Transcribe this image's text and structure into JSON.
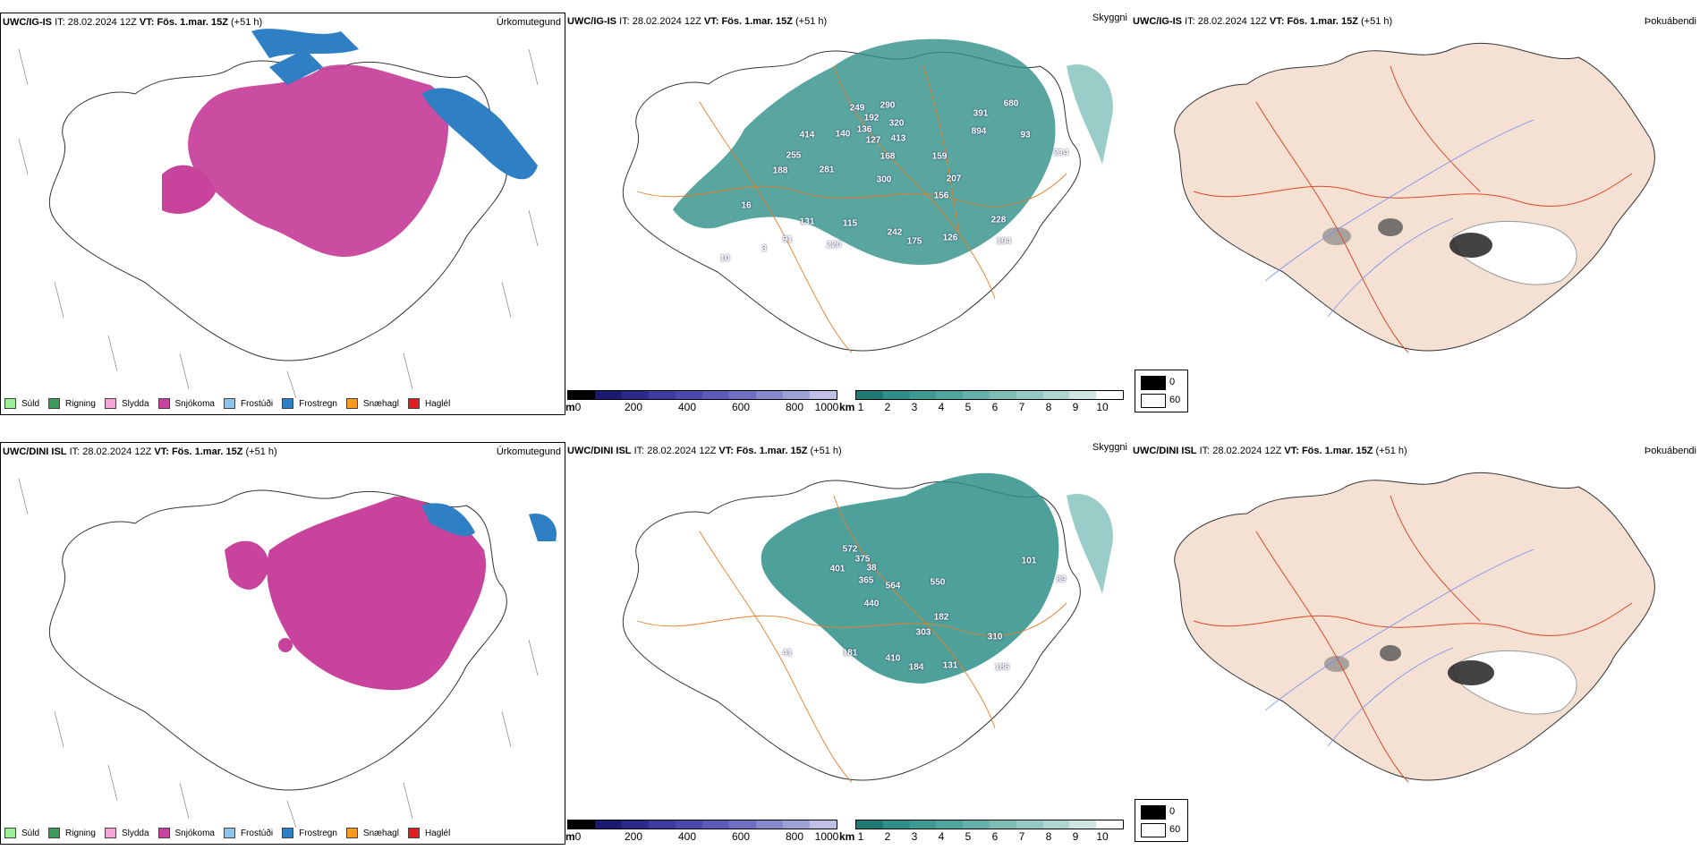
{
  "rows": [
    {
      "model": "UWC/IG-IS",
      "it_label": "IT:",
      "it": "28.02.2024 12Z",
      "vt_label": "VT:",
      "vt": "Fös. 1.mar. 15Z",
      "lead": "(+51 h)",
      "panels": {
        "precip": "Úrkomutegund",
        "visibility": "Skyggni",
        "fog": "Þokuábendi"
      },
      "visibility_values": [
        "249",
        "192",
        "290",
        "320",
        "391",
        "680",
        "414",
        "140",
        "136",
        "127",
        "413",
        "894",
        "255",
        "168",
        "159",
        "93",
        "214",
        "188",
        "281",
        "300",
        "207",
        "156",
        "16",
        "131",
        "115",
        "228",
        "91",
        "242",
        "175",
        "126",
        "194",
        "3",
        "220",
        "10"
      ]
    },
    {
      "model": "UWC/DINI ISL",
      "it_label": "IT:",
      "it": "28.02.2024 12Z",
      "vt_label": "VT:",
      "vt": "Fös. 1.mar. 15Z",
      "lead": "(+51 h)",
      "panels": {
        "precip": "Úrkomutegund",
        "visibility": "Skyggni",
        "fog": "Þokuábendi"
      },
      "visibility_values": [
        "572",
        "375",
        "401",
        "38",
        "365",
        "564",
        "550",
        "101",
        "89",
        "440",
        "182",
        "303",
        "310",
        "181",
        "41",
        "410",
        "184",
        "131",
        "186"
      ]
    }
  ],
  "precip_legend": [
    {
      "label": "Súld",
      "color": "#99ee99"
    },
    {
      "label": "Rigning",
      "color": "#3a9a5a"
    },
    {
      "label": "Slydda",
      "color": "#f4a6d6"
    },
    {
      "label": "Snjókoma",
      "color": "#c8439c"
    },
    {
      "label": "Frostúði",
      "color": "#90c4f0"
    },
    {
      "label": "Frostregn",
      "color": "#2f7fc4"
    },
    {
      "label": "Snæhagl",
      "color": "#f59a20"
    },
    {
      "label": "Haglél",
      "color": "#e02020"
    }
  ],
  "m_colorbar": {
    "unit": "m",
    "ticks": [
      "0",
      "200",
      "400",
      "600",
      "800",
      "1000"
    ]
  },
  "km_colorbar": {
    "unit": "km",
    "ticks": [
      "1",
      "2",
      "3",
      "4",
      "5",
      "6",
      "7",
      "8",
      "9",
      "10"
    ]
  },
  "fog_legend": {
    "values": [
      "0",
      "60"
    ]
  },
  "colors": {
    "snow": "#c8439c",
    "frost_rain": "#2f7fc4",
    "teal": "#2f8f88",
    "land": "#f5e1d3",
    "road_orange": "#e87f2a",
    "road_red": "#d8482b",
    "river": "#7a8cf0"
  }
}
